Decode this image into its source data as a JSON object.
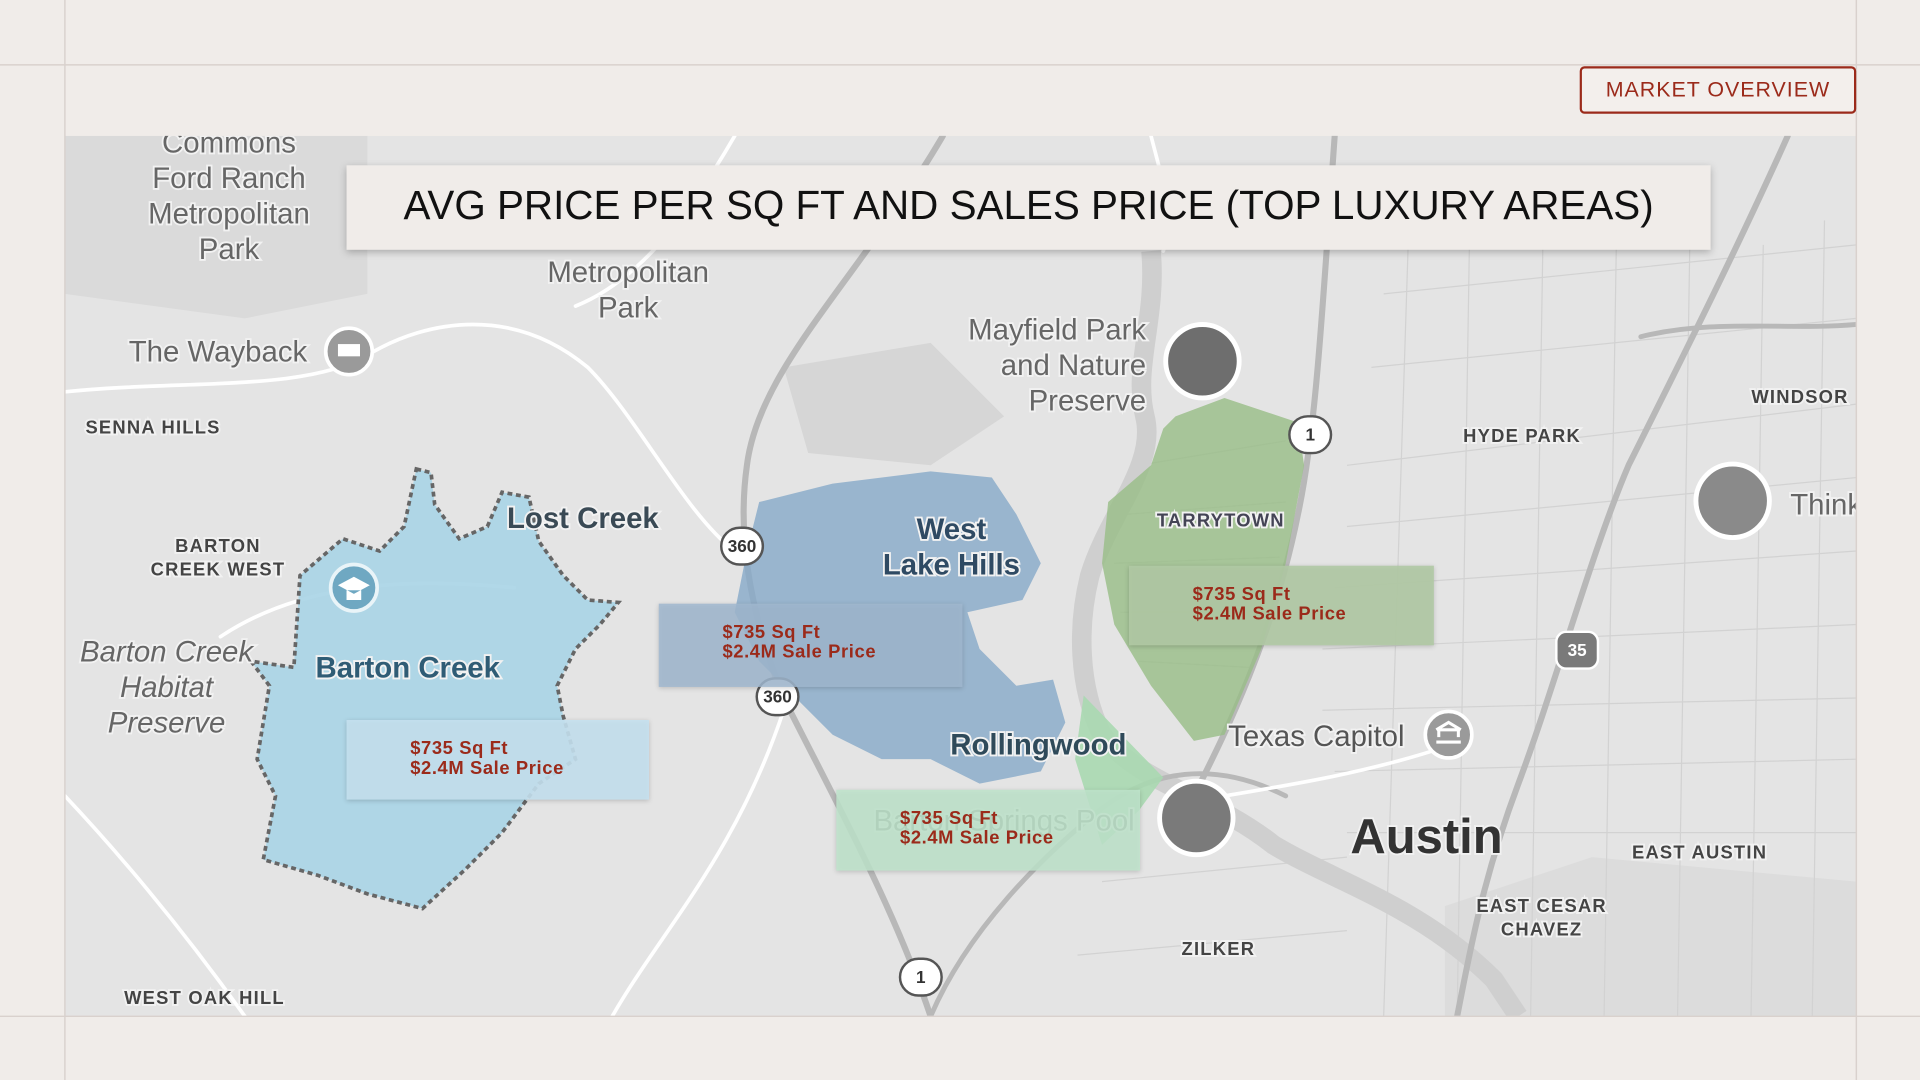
{
  "badge": "MARKET OVERVIEW",
  "title": "AVG PRICE PER SQ FT AND SALES PRICE (TOP LUXURY AREAS)",
  "areas": [
    {
      "name": "Barton Creek",
      "price_per_sqft": "$735 Sq Ft",
      "sale_price": "$2.4M Sale Price"
    },
    {
      "name": "West Lake Hills",
      "price_per_sqft": "$735 Sq Ft",
      "sale_price": "$2.4M Sale Price"
    },
    {
      "name": "Rollingwood",
      "price_per_sqft": "$735 Sq Ft",
      "sale_price": "$2.4M Sale Price"
    },
    {
      "name": "Tarrytown",
      "price_per_sqft": "$735 Sq Ft",
      "sale_price": "$2.4M Sale Price"
    }
  ],
  "map_labels": [
    [
      "Commons",
      "Ford Ranch",
      "Metropolitan",
      "Park"
    ],
    [
      "Metropolitan",
      "Park"
    ],
    [
      "The Wayback"
    ],
    [
      "SENNA HILLS"
    ],
    [
      "Mayfield Park",
      "and Nature",
      "Preserve"
    ],
    [
      "Lost Creek"
    ],
    [
      "BARTON",
      "CREEK WEST"
    ],
    [
      "Barton Creek",
      "Habitat",
      "Preserve"
    ],
    [
      "Barton Creek"
    ],
    [
      "West",
      "Lake Hills"
    ],
    [
      "Rollingwood"
    ],
    [
      "Barton Springs Pool"
    ],
    [
      "TARRYTOWN"
    ],
    [
      "HYDE PARK"
    ],
    [
      "WINDSOR"
    ],
    [
      "Think"
    ],
    [
      "Texas Capitol"
    ],
    [
      "Austin"
    ],
    [
      "EAST AUSTIN"
    ],
    [
      "EAST CESAR",
      "CHAVEZ"
    ],
    [
      "ZILKER"
    ],
    [
      "WEST OAK HILL"
    ]
  ],
  "road_shields": [
    "360",
    "360",
    "1",
    "1",
    "35"
  ]
}
